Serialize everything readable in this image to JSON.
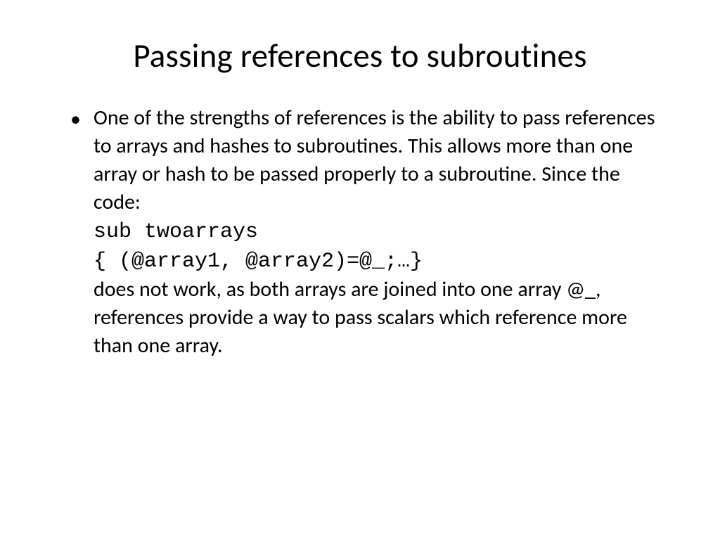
{
  "slide": {
    "title": "Passing references to subroutines",
    "title_fontsize": 47,
    "title_color": "#000000",
    "background_color": "#ffffff",
    "body_fontsize": 30,
    "body_lineheight": 40,
    "body_color": "#000000",
    "code_font": "Courier New",
    "body_font": "Calibri",
    "bullet_char": "•",
    "body": {
      "part1": "One of the strengths of references is the ability to pass references to arrays and hashes to subroutines. This allows more than one array or hash to be passed properly to a subroutine. Since the code:",
      "code1": "sub twoarrays",
      "code2": "{ (@array1, @array2)=@_;…}",
      "part2": "does not work, as both arrays are joined into one array @_, references provide a way to pass scalars which reference more than one array."
    }
  }
}
